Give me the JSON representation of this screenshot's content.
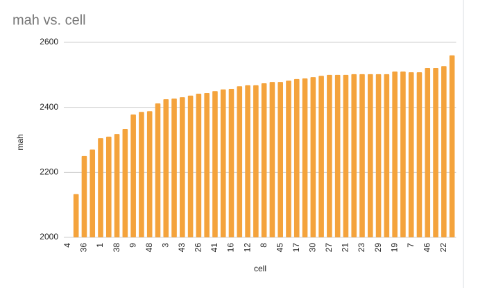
{
  "chart_data": {
    "type": "bar",
    "title": "mah vs. cell",
    "x_label": "cell",
    "y_label": "mah",
    "categories": [
      "4",
      null,
      "36",
      null,
      "1",
      null,
      "38",
      null,
      "9",
      null,
      "48",
      null,
      "3",
      null,
      "43",
      null,
      "26",
      null,
      "41",
      null,
      "16",
      null,
      "12",
      null,
      "8",
      null,
      "45",
      null,
      "17",
      null,
      "30",
      null,
      "27",
      null,
      "21",
      null,
      "23",
      null,
      "29",
      null,
      "19",
      null,
      "7",
      null,
      "46",
      null,
      "22",
      null
    ],
    "values": [
      null,
      2133,
      2250,
      2270,
      2305,
      2310,
      2318,
      2333,
      2378,
      2386,
      2388,
      2412,
      2425,
      2427,
      2431,
      2436,
      2442,
      2444,
      2450,
      2455,
      2457,
      2465,
      2468,
      2468,
      2474,
      2478,
      2478,
      2482,
      2487,
      2489,
      2493,
      2497,
      2500,
      2500,
      2500,
      2502,
      2502,
      2502,
      2502,
      2502,
      2510,
      2510,
      2508,
      2508,
      2521,
      2521,
      2527,
      2560
    ],
    "color": "#f4a33c",
    "ylim": [
      2000,
      2600
    ],
    "yticks": [
      2000,
      2200,
      2400,
      2600
    ],
    "grid": true
  }
}
